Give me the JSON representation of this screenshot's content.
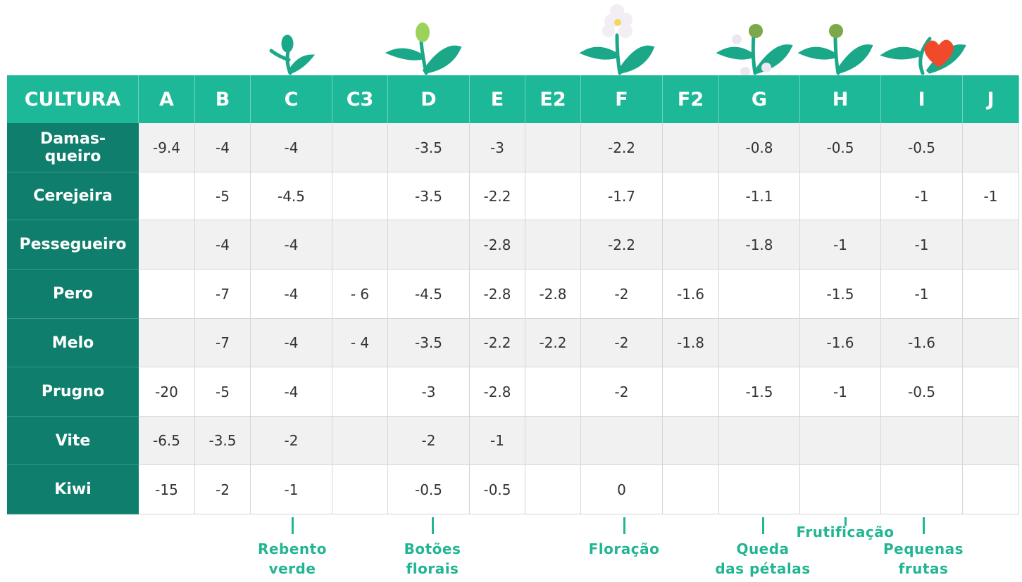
{
  "table": {
    "header": [
      "CULTURA",
      "A",
      "B",
      "C",
      "C3",
      "D",
      "E",
      "E2",
      "F",
      "F2",
      "G",
      "H",
      "I",
      "J"
    ],
    "rows": [
      [
        "Damas-\nqueiro",
        "-9.4",
        "-4",
        "-4",
        null,
        "-3.5",
        "-3",
        null,
        "-2.2",
        null,
        "-0.8",
        "-0.5",
        "-0.5",
        null
      ],
      [
        "Cerejeira",
        null,
        "-5",
        "-4.5",
        null,
        "-3.5",
        "-2.2",
        null,
        "-1.7",
        null,
        "-1.1",
        null,
        "-1",
        "-1"
      ],
      [
        "Pessegueiro",
        null,
        "-4",
        "-4",
        null,
        null,
        "-2.8",
        null,
        "-2.2",
        null,
        "-1.8",
        "-1",
        "-1",
        null
      ],
      [
        "Pero",
        null,
        "-7",
        "-4",
        "- 6",
        "-4.5",
        "-2.8",
        "-2.8",
        "-2",
        "-1.6",
        null,
        "-1.5",
        "-1",
        null
      ],
      [
        "Melo",
        null,
        "-7",
        "-4",
        "- 4",
        "-3.5",
        "-2.2",
        "-2.2",
        "-2",
        "-1.8",
        null,
        "-1.6",
        "-1.6",
        null
      ],
      [
        "Prugno",
        "-20",
        "-5",
        "-4",
        null,
        "-3",
        "-2.8",
        null,
        "-2",
        null,
        "-1.5",
        "-1",
        "-0.5",
        null
      ],
      [
        "Vite",
        "-6.5",
        "-3.5",
        "-2",
        null,
        "-2",
        "-1",
        null,
        null,
        null,
        null,
        null,
        null,
        null
      ],
      [
        "Kiwi",
        "-15",
        "-2",
        "-1",
        null,
        "-0.5",
        "-0.5",
        null,
        "0",
        null,
        null,
        null,
        null,
        null
      ]
    ]
  },
  "stages": [
    "Rebento\nverde",
    "Botões\nflorais",
    "Floração",
    "Queda\ndas pétalas",
    "Frutificação",
    "Pequenas\nfrutas"
  ]
}
